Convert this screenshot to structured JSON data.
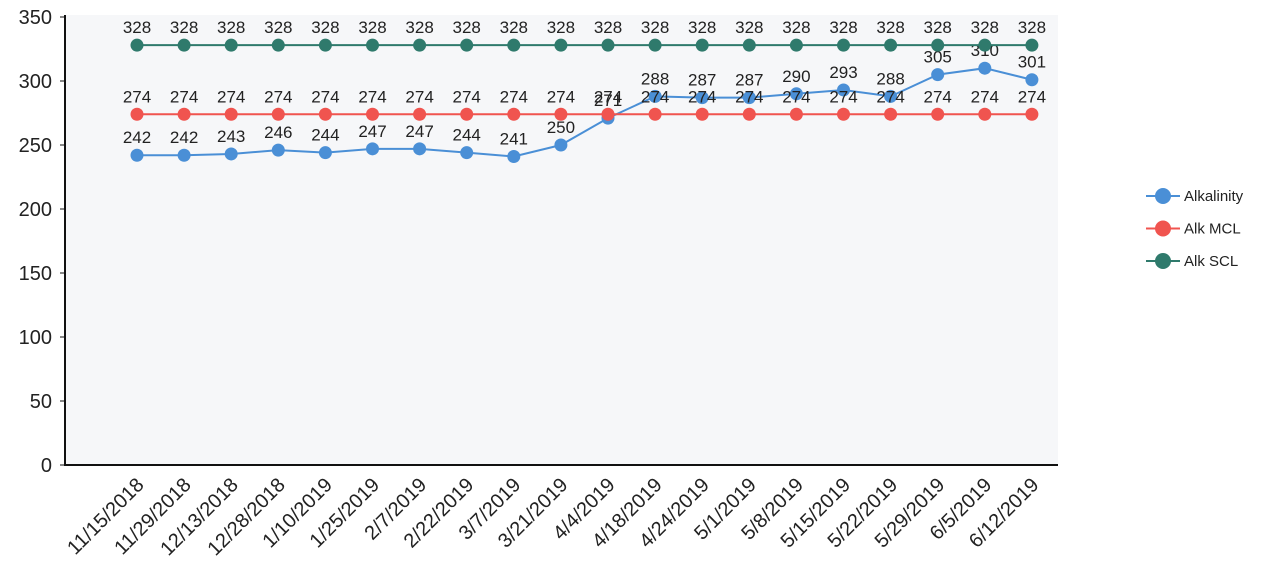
{
  "chart_data": {
    "type": "line",
    "categories": [
      "11/15/2018",
      "11/29/2018",
      "12/13/2018",
      "12/28/2018",
      "1/10/2019",
      "1/25/2019",
      "2/7/2019",
      "2/22/2019",
      "3/7/2019",
      "3/21/2019",
      "4/4/2019",
      "4/18/2019",
      "4/24/2019",
      "5/1/2019",
      "5/8/2019",
      "5/15/2019",
      "5/22/2019",
      "5/29/2019",
      "6/5/2019",
      "6/12/2019"
    ],
    "series": [
      {
        "name": "Alkalinity",
        "color": "#4a8fd6",
        "values": [
          242,
          242,
          243,
          246,
          244,
          247,
          247,
          244,
          241,
          250,
          271,
          288,
          287,
          287,
          290,
          293,
          288,
          305,
          310,
          301
        ]
      },
      {
        "name": "Alk MCL",
        "color": "#f0544f",
        "values": [
          274,
          274,
          274,
          274,
          274,
          274,
          274,
          274,
          274,
          274,
          274,
          274,
          274,
          274,
          274,
          274,
          274,
          274,
          274,
          274
        ]
      },
      {
        "name": "Alk SCL",
        "color": "#2f7a6c",
        "values": [
          328,
          328,
          328,
          328,
          328,
          328,
          328,
          328,
          328,
          328,
          328,
          328,
          328,
          328,
          328,
          328,
          328,
          328,
          328,
          328
        ]
      }
    ],
    "ylim": [
      0,
      350
    ],
    "yticks": [
      0,
      50,
      100,
      150,
      200,
      250,
      300,
      350
    ],
    "legend": "right",
    "data_labels": true
  }
}
